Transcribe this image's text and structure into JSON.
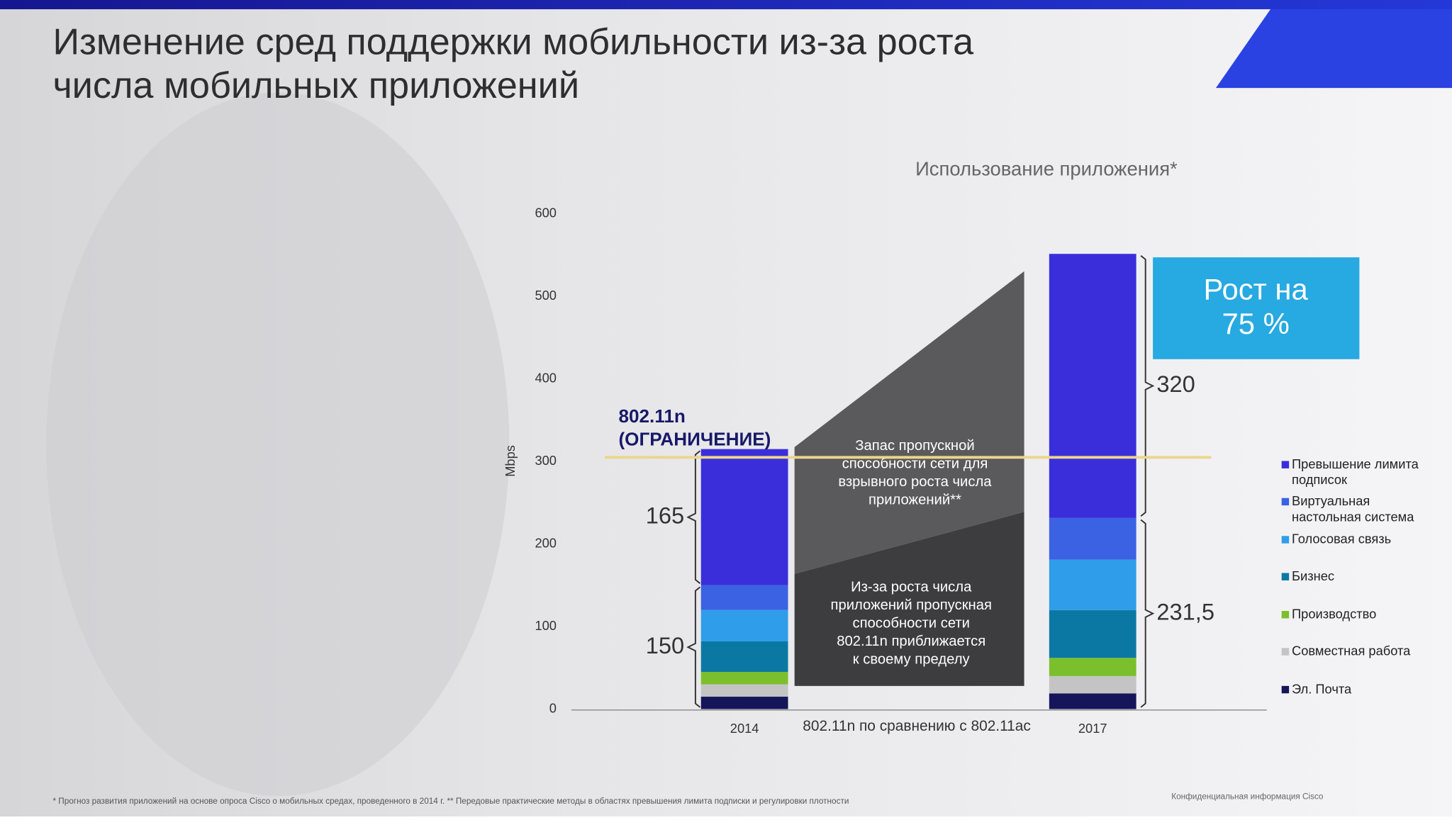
{
  "slide": {
    "title": [
      "Изменение сред поддержки мобильности из-за роста",
      "числа мобильных приложений"
    ],
    "footnote": "* Прогноз развития приложений на основе опроса Cisco о мобильных средах, проведенного в 2014 г. ** Передовые практические методы в областях превышения лимита подписки и регулировки плотности",
    "confidential": "Конфиденциальная информация Cisco"
  },
  "chart_data": {
    "type": "stacked_bar",
    "title": "Использование приложения*",
    "y_label": "Mbps",
    "x_label": "802.11n по сравнению с 802.11ac",
    "categories": [
      "2014",
      "2017"
    ],
    "ylim": [
      0,
      600
    ],
    "yticks": [
      0,
      100,
      200,
      300,
      400,
      500,
      600
    ],
    "series": [
      {
        "name": "Эл. Почта",
        "color": "#15155a",
        "values": [
          15,
          19
        ]
      },
      {
        "name": "Совместная работа",
        "color": "#c4c4c4",
        "values": [
          15,
          21
        ]
      },
      {
        "name": "Производство",
        "color": "#7bc02c",
        "values": [
          15,
          22
        ]
      },
      {
        "name": "Бизнес",
        "color": "#0b78a3",
        "values": [
          37,
          58
        ]
      },
      {
        "name": "Голосовая связь",
        "color": "#2f9de9",
        "values": [
          38,
          61
        ]
      },
      {
        "name": "Виртуальная настольная система",
        "color": "#3a62e2",
        "values": [
          30,
          50.5
        ]
      },
      {
        "name": "Превышение лимита подписок",
        "color": "#3a2edb",
        "values": [
          165,
          320
        ]
      }
    ],
    "bracket_labels": [
      [
        "150",
        "165"
      ],
      [
        "231,5",
        "320"
      ]
    ],
    "limit_line": {
      "value": 305,
      "label": [
        "802.11n",
        "(ОГРАНИЧЕНИЕ)"
      ],
      "color": "#ecd68c"
    },
    "growth": [
      "Рост на",
      "75 %"
    ],
    "headroom_text": [
      "Запас пропускной",
      "способности сети для",
      "взрывного роста числа",
      "приложений**"
    ],
    "limit_text": [
      "Из-за роста числа",
      "приложений пропускная",
      "способности сети",
      "802.11n приближается",
      "к своему пределу"
    ]
  }
}
